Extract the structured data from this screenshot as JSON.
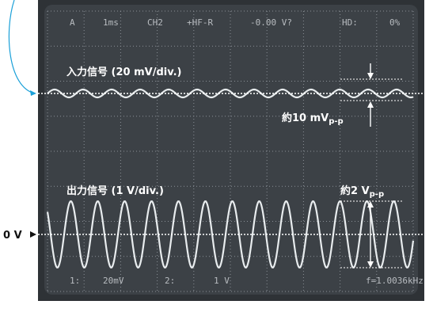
{
  "screen": {
    "readout_top": [
      "A",
      "1ms",
      "CH2",
      "+HF-R",
      "-0.00 V?",
      "HD:",
      "0%"
    ],
    "readout_bottom": [
      "1:",
      "20mV",
      "2:",
      "1 V"
    ],
    "frequency": "f=1.0036kHz"
  },
  "annotations": {
    "input_label": "入力信号 (20 mV/div.)",
    "input_amplitude": {
      "main": "約10 mV",
      "sub": "p-p"
    },
    "output_label": "出力信号 (1 V/div.)",
    "output_amplitude": {
      "main": "約2 V",
      "sub": "p-p"
    },
    "zero_level": "0 V"
  }
}
